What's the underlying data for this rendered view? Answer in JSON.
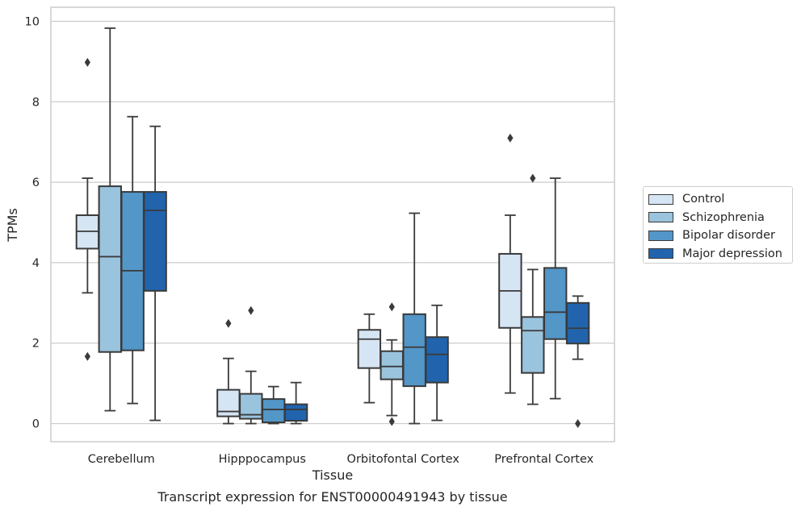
{
  "chart_data": {
    "type": "boxplot",
    "title": "Transcript expression for ENST00000491943 by tissue",
    "xlabel": "Tissue",
    "ylabel": "TPMs",
    "ylim": [
      -0.45,
      10.35
    ],
    "yticks": [
      0,
      2,
      4,
      6,
      8,
      10
    ],
    "grid": true,
    "legend_position": "right",
    "categories": [
      "Cerebellum",
      "Hipppocampus",
      "Orbitofontal Cortex",
      "Prefrontal Cortex"
    ],
    "series": [
      {
        "name": "Control",
        "color": "#d6e5f4",
        "boxes": [
          {
            "whislo": 3.25,
            "q1": 4.35,
            "med": 4.78,
            "q3": 5.18,
            "whishi": 6.1,
            "fliers": [
              8.98,
              1.67
            ]
          },
          {
            "whislo": 0.0,
            "q1": 0.18,
            "med": 0.3,
            "q3": 0.84,
            "whishi": 1.62,
            "fliers": [
              2.49
            ]
          },
          {
            "whislo": 0.52,
            "q1": 1.38,
            "med": 2.1,
            "q3": 2.33,
            "whishi": 2.72,
            "fliers": []
          },
          {
            "whislo": 0.76,
            "q1": 2.38,
            "med": 3.3,
            "q3": 4.22,
            "whishi": 5.18,
            "fliers": [
              7.1
            ]
          }
        ]
      },
      {
        "name": "Schizophrenia",
        "color": "#9ac3de",
        "boxes": [
          {
            "whislo": 0.32,
            "q1": 1.78,
            "med": 4.15,
            "q3": 5.9,
            "whishi": 9.83,
            "fliers": []
          },
          {
            "whislo": 0.0,
            "q1": 0.12,
            "med": 0.22,
            "q3": 0.74,
            "whishi": 1.3,
            "fliers": [
              2.81
            ]
          },
          {
            "whislo": 0.2,
            "q1": 1.1,
            "med": 1.42,
            "q3": 1.8,
            "whishi": 2.08,
            "fliers": [
              2.9,
              0.05
            ]
          },
          {
            "whislo": 0.48,
            "q1": 1.26,
            "med": 2.31,
            "q3": 2.65,
            "whishi": 3.83,
            "fliers": [
              6.1
            ]
          }
        ]
      },
      {
        "name": "Bipolar disorder",
        "color": "#5396c8",
        "boxes": [
          {
            "whislo": 0.5,
            "q1": 1.82,
            "med": 3.8,
            "q3": 5.76,
            "whishi": 7.63,
            "fliers": []
          },
          {
            "whislo": 0.0,
            "q1": 0.03,
            "med": 0.35,
            "q3": 0.61,
            "whishi": 0.92,
            "fliers": []
          },
          {
            "whislo": 0.0,
            "q1": 0.93,
            "med": 1.9,
            "q3": 2.72,
            "whishi": 5.23,
            "fliers": []
          },
          {
            "whislo": 0.62,
            "q1": 2.1,
            "med": 2.77,
            "q3": 3.87,
            "whishi": 6.1,
            "fliers": []
          }
        ]
      },
      {
        "name": "Major depression",
        "color": "#2164ad",
        "boxes": [
          {
            "whislo": 0.08,
            "q1": 3.3,
            "med": 5.3,
            "q3": 5.76,
            "whishi": 7.39,
            "fliers": []
          },
          {
            "whislo": 0.0,
            "q1": 0.07,
            "med": 0.35,
            "q3": 0.48,
            "whishi": 1.02,
            "fliers": []
          },
          {
            "whislo": 0.08,
            "q1": 1.02,
            "med": 1.72,
            "q3": 2.15,
            "whishi": 2.94,
            "fliers": []
          },
          {
            "whislo": 1.6,
            "q1": 1.99,
            "med": 2.37,
            "q3": 3.0,
            "whishi": 3.17,
            "fliers": [
              0.0
            ]
          }
        ]
      }
    ]
  }
}
